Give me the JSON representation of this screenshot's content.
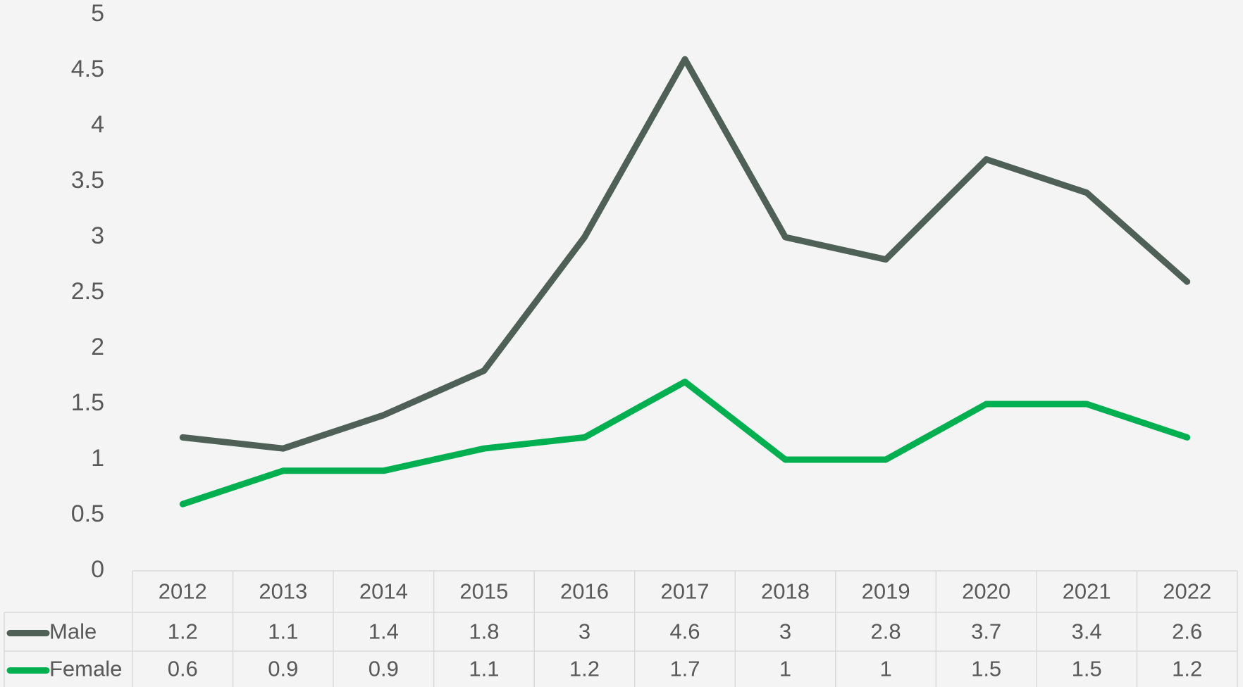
{
  "chart_data": {
    "type": "line",
    "categories": [
      "2012",
      "2013",
      "2014",
      "2015",
      "2016",
      "2017",
      "2018",
      "2019",
      "2020",
      "2021",
      "2022"
    ],
    "series": [
      {
        "name": "Male",
        "color": "#4f6157",
        "values": [
          1.2,
          1.1,
          1.4,
          1.8,
          3,
          4.6,
          3,
          2.8,
          3.7,
          3.4,
          2.6
        ]
      },
      {
        "name": "Female",
        "color": "#00b050",
        "values": [
          0.6,
          0.9,
          0.9,
          1.1,
          1.2,
          1.7,
          1,
          1,
          1.5,
          1.5,
          1.2
        ]
      }
    ],
    "ylim": [
      0,
      5
    ],
    "yticks": [
      0,
      0.5,
      1,
      1.5,
      2,
      2.5,
      3,
      3.5,
      4,
      4.5,
      5
    ],
    "grid": false,
    "data_table": true
  }
}
